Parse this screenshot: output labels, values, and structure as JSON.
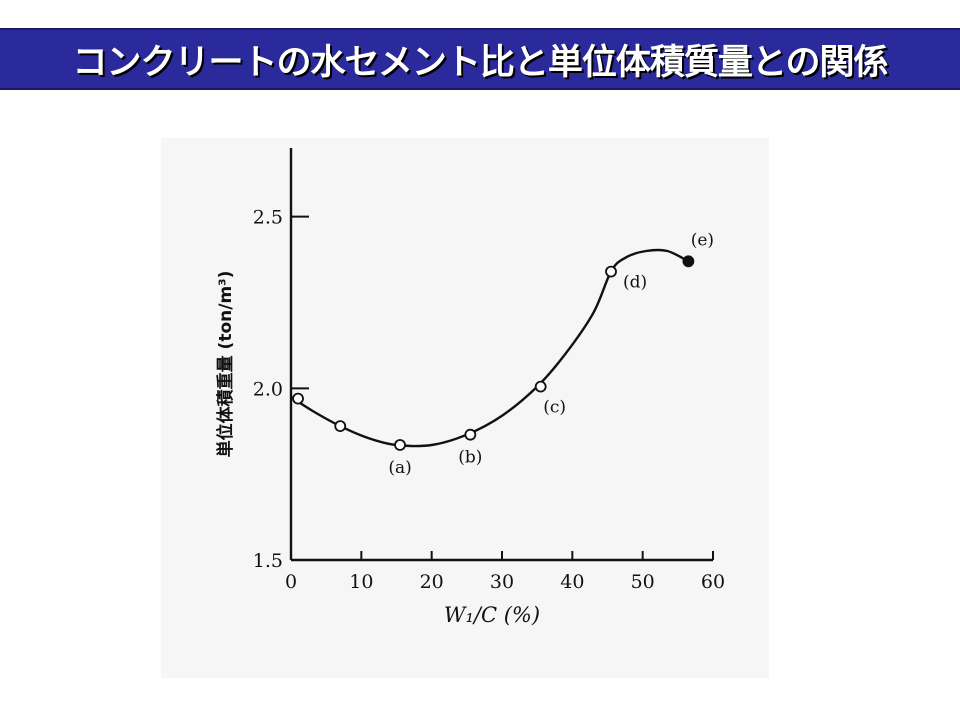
{
  "slide": {
    "title": "コンクリートの水セメント比と単位体積質量との関係"
  },
  "colors": {
    "title_bar": "#2a2a9c",
    "title_text": "#ffffff",
    "figure_background": "#f6f6f6",
    "ink": "#111111"
  },
  "chart_data": {
    "type": "line",
    "title": "",
    "xlabel": "W₁/C (%)",
    "ylabel": "単位体積重量 (ton/m³)",
    "xlim": [
      0,
      60
    ],
    "ylim": [
      1.5,
      2.7
    ],
    "x_ticks": [
      0,
      10,
      20,
      30,
      40,
      50,
      60
    ],
    "x_tick_labels": [
      "0",
      "10",
      "20",
      "30",
      "40",
      "50",
      "60"
    ],
    "y_ticks": [
      1.5,
      2.0,
      2.5
    ],
    "y_tick_labels": [
      "1.5",
      "2.0",
      "2.5"
    ],
    "grid": false,
    "legend": "none",
    "series": [
      {
        "x": [
          0.0,
          3.0,
          7.0,
          11.0,
          15.0,
          20.0,
          25.0,
          30.0,
          35.0,
          39.0,
          43.0,
          45.5,
          47.5,
          50.5,
          53.5,
          56.5
        ],
        "y": [
          1.975,
          1.935,
          1.89,
          1.855,
          1.835,
          1.835,
          1.865,
          1.92,
          2.005,
          2.1,
          2.22,
          2.34,
          2.38,
          2.4,
          2.4,
          2.37
        ]
      }
    ],
    "points": [
      {
        "x": 1.0,
        "y": 1.97,
        "marker": "open",
        "label": ""
      },
      {
        "x": 7.0,
        "y": 1.89,
        "marker": "open",
        "label": ""
      },
      {
        "x": 15.5,
        "y": 1.835,
        "marker": "open",
        "label": "(a)"
      },
      {
        "x": 25.5,
        "y": 1.865,
        "marker": "open",
        "label": "(b)"
      },
      {
        "x": 35.5,
        "y": 2.005,
        "marker": "open",
        "label": "(c)"
      },
      {
        "x": 45.5,
        "y": 2.34,
        "marker": "open",
        "label": "(d)"
      },
      {
        "x": 56.5,
        "y": 2.37,
        "marker": "filled",
        "label": "(e)"
      }
    ]
  }
}
